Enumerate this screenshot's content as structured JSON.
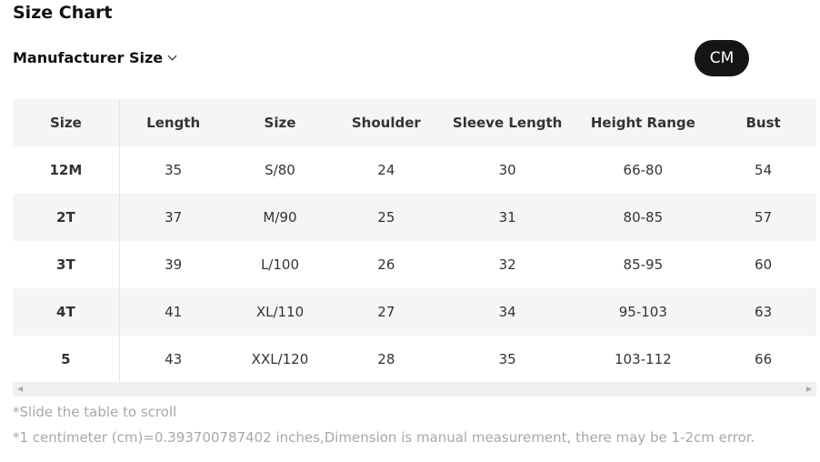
{
  "title": "Size Chart",
  "manufacturer_size": "Manufacturer Size",
  "unit_button": "CM",
  "table": {
    "headers": [
      "Size",
      "Length",
      "Size",
      "Shoulder",
      "Sleeve Length",
      "Height Range",
      "Bust"
    ],
    "rows": [
      [
        "12M",
        "35",
        "S/80",
        "24",
        "30",
        "66-80",
        "54"
      ],
      [
        "2T",
        "37",
        "M/90",
        "25",
        "31",
        "80-85",
        "57"
      ],
      [
        "3T",
        "39",
        "L/100",
        "26",
        "32",
        "85-95",
        "60"
      ],
      [
        "4T",
        "41",
        "XL/110",
        "27",
        "34",
        "95-103",
        "63"
      ],
      [
        "5",
        "43",
        "XXL/120",
        "28",
        "35",
        "103-112",
        "66"
      ]
    ]
  },
  "notes": [
    "*Slide the table to scroll",
    "*1 centimeter (cm)=0.393700787402 inches,Dimension is manual measurement, there may be 1-2cm error."
  ]
}
